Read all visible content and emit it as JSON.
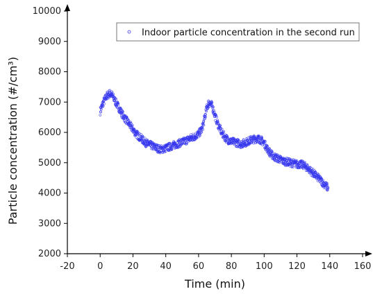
{
  "chart_data": {
    "type": "scatter",
    "xlabel": "Time (min)",
    "ylabel": "Particle concentration (#/cm³)",
    "xlim": [
      -20,
      160
    ],
    "ylim": [
      2000,
      10000
    ],
    "x_ticks": [
      -20,
      0,
      20,
      40,
      60,
      80,
      100,
      120,
      140,
      160
    ],
    "y_ticks": [
      2000,
      3000,
      4000,
      5000,
      6000,
      7000,
      8000,
      9000,
      10000
    ],
    "x_tick_labels": [
      "-20",
      "0",
      "20",
      "40",
      "60",
      "80",
      "100",
      "120",
      "140",
      "160"
    ],
    "y_tick_labels": [
      "2000",
      "3000",
      "4000",
      "5000",
      "6000",
      "7000",
      "8000",
      "9000",
      "10000"
    ],
    "legend_position": "top-right",
    "grid": false,
    "colors": {
      "series": "#3333ee",
      "axis": "#000000"
    },
    "series": [
      {
        "name": "Indoor particle concentration in the second run",
        "marker": "open-circle",
        "x": [
          0,
          1,
          2,
          3,
          4,
          5,
          6,
          7,
          8,
          9,
          10,
          12,
          14,
          16,
          18,
          20,
          22,
          24,
          26,
          28,
          30,
          32,
          34,
          36,
          38,
          40,
          42,
          44,
          46,
          48,
          50,
          52,
          54,
          56,
          58,
          60,
          62,
          63,
          64,
          65,
          66,
          67,
          68,
          69,
          70,
          72,
          74,
          76,
          78,
          80,
          82,
          84,
          86,
          88,
          90,
          92,
          94,
          96,
          98,
          100,
          102,
          104,
          106,
          108,
          110,
          112,
          114,
          116,
          118,
          120,
          122,
          124,
          126,
          128,
          130,
          132,
          134,
          136,
          138,
          139
        ],
        "y": [
          6700,
          6850,
          7000,
          7100,
          7200,
          7250,
          7280,
          7250,
          7150,
          7050,
          6950,
          6750,
          6550,
          6400,
          6250,
          6100,
          5950,
          5850,
          5750,
          5650,
          5600,
          5550,
          5500,
          5450,
          5450,
          5480,
          5520,
          5560,
          5600,
          5640,
          5680,
          5720,
          5780,
          5830,
          5880,
          5950,
          6100,
          6300,
          6550,
          6800,
          6950,
          6970,
          6900,
          6750,
          6550,
          6250,
          6000,
          5850,
          5750,
          5700,
          5680,
          5650,
          5620,
          5650,
          5700,
          5750,
          5780,
          5800,
          5750,
          5650,
          5450,
          5300,
          5200,
          5150,
          5100,
          5050,
          5030,
          5000,
          4980,
          4950,
          4950,
          4920,
          4850,
          4750,
          4650,
          4550,
          4450,
          4330,
          4220,
          4170
        ]
      }
    ]
  }
}
